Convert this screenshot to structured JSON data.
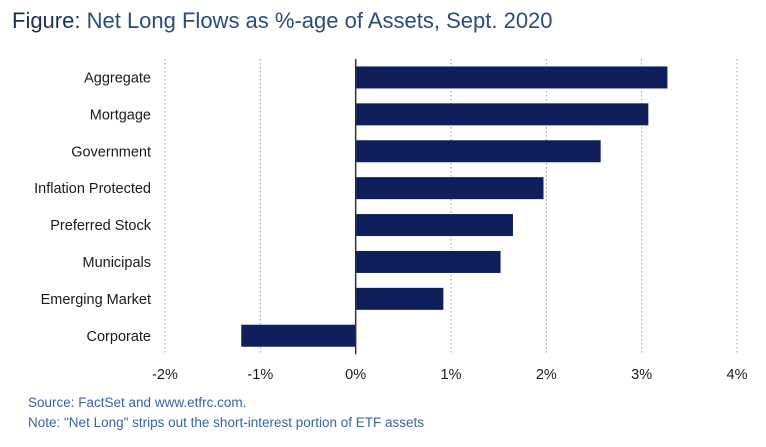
{
  "title": {
    "prefix": "Figure:",
    "text": " Net Long Flows as %-age of Assets, Sept. 2020"
  },
  "footnotes": {
    "source": "Source: FactSet and www.etfrc.com.",
    "note": "Note: \"Net Long\" strips out the short-interest portion of ETF assets"
  },
  "colors": {
    "bar": "#0f1f5c",
    "title_prefix": "#1a2e5c",
    "title_text": "#2b4a7d",
    "footnote": "#3a62a8",
    "grid": "#999999",
    "zero_axis": "#333333"
  },
  "chart_data": {
    "type": "bar",
    "orientation": "horizontal",
    "categories": [
      "Aggregate",
      "Mortgage",
      "Government",
      "Inflation Protected",
      "Preferred Stock",
      "Municipals",
      "Emerging Market",
      "Corporate"
    ],
    "values": [
      3.27,
      3.07,
      2.57,
      1.97,
      1.65,
      1.52,
      0.92,
      -1.2
    ],
    "xlim": [
      -2,
      4
    ],
    "xticks": [
      -2,
      -1,
      0,
      1,
      2,
      3,
      4
    ],
    "xtick_labels": [
      "-2%",
      "-1%",
      "0%",
      "1%",
      "2%",
      "3%",
      "4%"
    ],
    "unit": "%",
    "grid": "vertical-dotted",
    "legend": "none"
  }
}
